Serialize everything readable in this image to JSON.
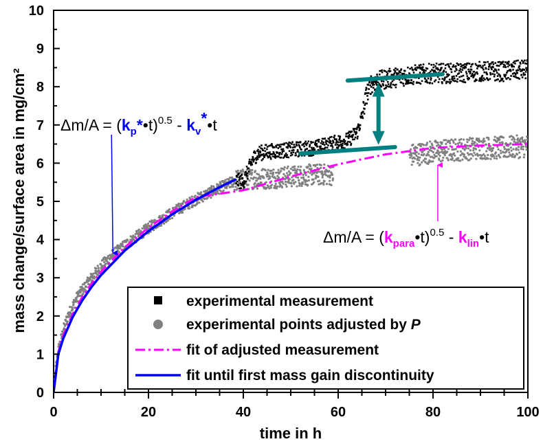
{
  "chart_data": {
    "type": "scatter",
    "title": "",
    "xlabel": "time in h",
    "ylabel": "mass change/surface area in mg/cm²",
    "xlim": [
      0,
      100
    ],
    "ylim": [
      0,
      10
    ],
    "x_ticks": [
      "0",
      "20",
      "40",
      "60",
      "80",
      "100"
    ],
    "y_ticks": [
      "0",
      "1",
      "2",
      "3",
      "4",
      "5",
      "6",
      "7",
      "8",
      "9",
      "10"
    ],
    "legend_position": "bottom-right",
    "series": [
      {
        "name": "experimental measurement",
        "kind": "scatter",
        "color": "#000000",
        "points": [
          [
            38.5,
            5.55
          ],
          [
            40,
            5.5
          ],
          [
            42,
            6.1
          ],
          [
            43,
            6.25
          ],
          [
            45,
            6.3
          ],
          [
            50,
            6.35
          ],
          [
            55,
            6.4
          ],
          [
            60,
            6.55
          ],
          [
            62,
            6.6
          ],
          [
            64,
            6.8
          ],
          [
            65,
            7.2
          ],
          [
            66,
            7.8
          ],
          [
            67,
            8.1
          ],
          [
            70,
            8.2
          ],
          [
            75,
            8.3
          ],
          [
            80,
            8.35
          ],
          [
            85,
            8.35
          ],
          [
            90,
            8.4
          ],
          [
            95,
            8.4
          ],
          [
            100,
            8.45
          ]
        ]
      },
      {
        "name": "experimental points adjusted by P",
        "kind": "scatter",
        "color": "#808080",
        "points": [
          [
            0,
            0.2
          ],
          [
            1,
            1.1
          ],
          [
            2,
            1.6
          ],
          [
            3,
            2.0
          ],
          [
            5,
            2.5
          ],
          [
            8,
            3.0
          ],
          [
            10,
            3.3
          ],
          [
            12,
            3.55
          ],
          [
            15,
            3.85
          ],
          [
            20,
            4.3
          ],
          [
            25,
            4.7
          ],
          [
            30,
            5.05
          ],
          [
            35,
            5.35
          ],
          [
            38.5,
            5.55
          ],
          [
            42,
            5.6
          ],
          [
            45,
            5.6
          ],
          [
            50,
            5.65
          ],
          [
            55,
            5.7
          ],
          [
            59,
            5.7
          ],
          [
            75,
            6.2
          ],
          [
            80,
            6.3
          ],
          [
            85,
            6.35
          ],
          [
            90,
            6.4
          ],
          [
            95,
            6.4
          ],
          [
            100,
            6.45
          ]
        ]
      },
      {
        "name": "fit of adjusted measurement",
        "kind": "line",
        "color": "#ff00ff",
        "points": [
          [
            0,
            0
          ],
          [
            1,
            1.06
          ],
          [
            2,
            1.48
          ],
          [
            4,
            2.05
          ],
          [
            6,
            2.49
          ],
          [
            8,
            2.85
          ],
          [
            10,
            3.16
          ],
          [
            15,
            3.8
          ],
          [
            20,
            4.31
          ],
          [
            25,
            4.74
          ],
          [
            30,
            5.11
          ],
          [
            40,
            5.29
          ],
          [
            50,
            5.65
          ],
          [
            60,
            5.97
          ],
          [
            70,
            6.23
          ],
          [
            80,
            6.4
          ],
          [
            90,
            6.46
          ],
          [
            100,
            6.5
          ]
        ]
      },
      {
        "name": "fit until first mass gain discontinuity",
        "kind": "line",
        "color": "#0000ff",
        "points": [
          [
            0,
            0
          ],
          [
            1,
            1.0
          ],
          [
            2,
            1.4
          ],
          [
            4,
            1.97
          ],
          [
            6,
            2.4
          ],
          [
            8,
            2.76
          ],
          [
            10,
            3.07
          ],
          [
            15,
            3.71
          ],
          [
            20,
            4.22
          ],
          [
            25,
            4.66
          ],
          [
            30,
            5.04
          ],
          [
            35,
            5.37
          ],
          [
            38.5,
            5.58
          ]
        ]
      }
    ],
    "annotations": {
      "equation_fit_until_discontinuity": {
        "parts": [
          "Δm/A = (",
          "k",
          "p",
          "*",
          "•t)",
          "0.5",
          " - ",
          "k",
          "v",
          "*",
          "•t"
        ],
        "points_to": [
          12.5,
          3.65
        ]
      },
      "equation_fit_adjusted": {
        "parts": [
          "Δm/A = (",
          "k",
          "para",
          "•t)",
          "0.5",
          " - ",
          "k",
          "lin",
          "•t"
        ],
        "points_to": [
          81,
          5.95
        ]
      },
      "step_marker": {
        "color": "#008080",
        "upper_line": [
          [
            62,
            8.16
          ],
          [
            82,
            8.33
          ]
        ],
        "lower_line": [
          [
            52,
            6.25
          ],
          [
            72,
            6.42
          ]
        ],
        "arrow_x": 68.5,
        "arrow_from": 6.48,
        "arrow_to": 8.1
      }
    }
  },
  "legend": {
    "items": [
      {
        "label": "experimental measurement",
        "label_suffix": ""
      },
      {
        "label": "experimental points adjusted by ",
        "label_suffix": "P"
      },
      {
        "label": "fit of adjusted measurement",
        "label_suffix": ""
      },
      {
        "label": "fit until first mass gain discontinuity",
        "label_suffix": ""
      }
    ]
  }
}
